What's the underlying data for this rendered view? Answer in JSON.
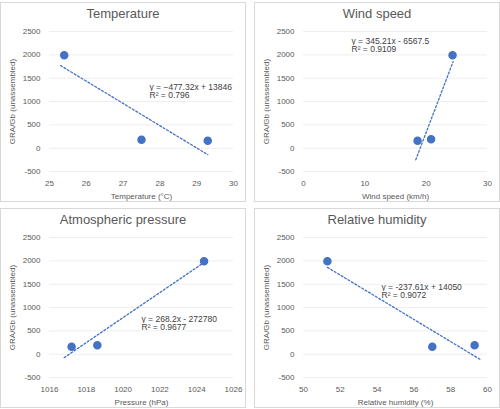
{
  "chart_data": [
    {
      "type": "scatter",
      "title": "Temperature",
      "x_label": "Temperature (°C)",
      "y_label": "GRA/Gb (unassembled)",
      "x": [
        25.4,
        27.5,
        29.3
      ],
      "values": [
        1990,
        180,
        160
      ],
      "color": "#4472c4",
      "marker": "circle",
      "trendline": {
        "x": [
          25.3,
          29.3
        ],
        "values": [
          1770,
          -139
        ],
        "line_style": "dotted"
      },
      "annotations": [
        "y = −477.32x + 13846",
        "R² = 0.796"
      ],
      "xlim": [
        25,
        30
      ],
      "xticks": [
        25,
        26,
        27,
        28,
        29,
        30
      ],
      "ylim": [
        -500,
        2500
      ],
      "yticks": [
        -500,
        0,
        500,
        1000,
        1500,
        2000,
        2500
      ],
      "grid": true
    },
    {
      "type": "scatter",
      "title": "Wind speed",
      "x_label": "Wind speed (km/h)",
      "y_label": "GRA/Gb (unassembled)",
      "x": [
        18.6,
        20.8,
        24.3
      ],
      "values": [
        160,
        190,
        1990
      ],
      "color": "#4472c4",
      "marker": "circle",
      "trendline": {
        "x": [
          18.3,
          24.4
        ],
        "values": [
          -250,
          1856
        ],
        "line_style": "dotted"
      },
      "annotations": [
        "y = 345.21x - 6567.5",
        "R² = 0.9109"
      ],
      "xlim": [
        0,
        30
      ],
      "xticks": [
        0,
        10,
        20,
        30
      ],
      "ylim": [
        -500,
        2500
      ],
      "yticks": [
        -500,
        0,
        500,
        1000,
        1500,
        2000,
        2500
      ],
      "grid": true
    },
    {
      "type": "scatter",
      "title": "Atmospheric pressure",
      "x_label": "Pressure (hPa)",
      "y_label": "GRA/Gb (unassembled)",
      "x": [
        1017.2,
        1018.6,
        1024.4
      ],
      "values": [
        160,
        190,
        1990
      ],
      "color": "#4472c4",
      "marker": "circle",
      "trendline": {
        "x": [
          1016.8,
          1024.4
        ],
        "values": [
          -74,
          1964
        ],
        "line_style": "dotted"
      },
      "annotations": [
        "y = 268.2x - 272780",
        "R² = 0.9677"
      ],
      "xlim": [
        1016,
        1026
      ],
      "xticks": [
        1016,
        1018,
        1020,
        1022,
        1024,
        1026
      ],
      "ylim": [
        -500,
        2500
      ],
      "yticks": [
        -500,
        0,
        500,
        1000,
        1500,
        2000,
        2500
      ],
      "grid": true
    },
    {
      "type": "scatter",
      "title": "Relative humidity",
      "x_label": "Relative humidity (%)",
      "y_label": "GRA/Gb (unassembled)",
      "x": [
        51.3,
        57.0,
        59.3
      ],
      "values": [
        1990,
        160,
        190
      ],
      "color": "#4472c4",
      "marker": "circle",
      "trendline": {
        "x": [
          51.3,
          59.6
        ],
        "values": [
          1860,
          -112
        ],
        "line_style": "dotted"
      },
      "annotations": [
        "y = -237.61x + 14050",
        "R² = 0.9072"
      ],
      "xlim": [
        50,
        60
      ],
      "xticks": [
        50,
        52,
        54,
        56,
        58,
        60
      ],
      "ylim": [
        -500,
        2500
      ],
      "yticks": [
        -500,
        0,
        500,
        1000,
        1500,
        2000,
        2500
      ],
      "grid": true
    }
  ]
}
